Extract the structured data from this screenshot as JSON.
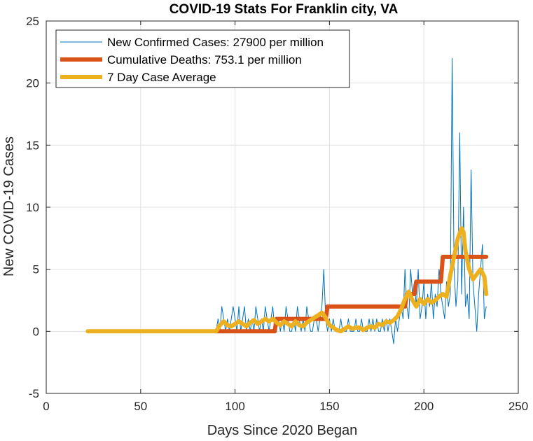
{
  "chart_data": {
    "type": "line",
    "title": "COVID-19 Stats For Franklin city, VA",
    "xlabel": "Days Since 2020 Began",
    "ylabel": "New COVID-19 Cases",
    "xlim": [
      0,
      250
    ],
    "ylim": [
      -5,
      25
    ],
    "xticks": [
      0,
      50,
      100,
      150,
      200,
      250
    ],
    "yticks": [
      -5,
      0,
      5,
      10,
      15,
      20,
      25
    ],
    "grid": true,
    "legend_position": "top-left",
    "series": [
      {
        "name": "New Confirmed Cases: 27900 per million",
        "color": "#0072bd",
        "x": [
          22,
          40,
          60,
          80,
          90,
          91,
          92,
          93,
          94,
          95,
          96,
          97,
          98,
          99,
          100,
          101,
          102,
          103,
          104,
          105,
          106,
          107,
          108,
          109,
          110,
          111,
          112,
          113,
          114,
          115,
          116,
          117,
          118,
          119,
          120,
          121,
          122,
          123,
          124,
          125,
          126,
          127,
          128,
          129,
          130,
          131,
          132,
          133,
          134,
          135,
          136,
          137,
          138,
          139,
          140,
          141,
          142,
          143,
          144,
          145,
          146,
          147,
          148,
          149,
          150,
          151,
          152,
          153,
          154,
          155,
          156,
          157,
          158,
          159,
          160,
          161,
          162,
          163,
          164,
          165,
          166,
          167,
          168,
          169,
          170,
          171,
          172,
          173,
          174,
          175,
          176,
          177,
          178,
          179,
          180,
          181,
          182,
          183,
          184,
          185,
          186,
          187,
          188,
          189,
          190,
          191,
          192,
          193,
          194,
          195,
          196,
          197,
          198,
          199,
          200,
          201,
          202,
          203,
          204,
          205,
          206,
          207,
          208,
          209,
          210,
          211,
          212,
          213,
          214,
          215,
          216,
          217,
          218,
          219,
          220,
          221,
          222,
          223,
          224,
          225,
          226,
          227,
          228,
          229,
          230,
          231,
          232,
          233
        ],
        "y": [
          0,
          0,
          0,
          0,
          0,
          1,
          0,
          2,
          1,
          0,
          1,
          0,
          1,
          2,
          1,
          0,
          2,
          0,
          1,
          2,
          0,
          1,
          0,
          1,
          0,
          2,
          1,
          0,
          1,
          0,
          2,
          1,
          0,
          1,
          2,
          0,
          1,
          1,
          0,
          1,
          0,
          2,
          1,
          0,
          0,
          1,
          0,
          2,
          1,
          0,
          1,
          0,
          2,
          1,
          0,
          0,
          1,
          1,
          0,
          1,
          2,
          5,
          1,
          0,
          1,
          0,
          1,
          0,
          0,
          0,
          1,
          0,
          0,
          0,
          1,
          0,
          0,
          0,
          1,
          0,
          0,
          1,
          0,
          0,
          0,
          1,
          0,
          1,
          0,
          1,
          0,
          0,
          1,
          0,
          1,
          0,
          1,
          0,
          -1,
          1,
          0,
          1,
          2,
          1,
          5,
          2,
          1,
          5,
          3,
          4,
          2,
          5,
          1,
          2,
          4,
          1,
          3,
          2,
          4,
          1,
          3,
          2,
          5,
          3,
          2,
          1,
          4,
          2,
          3,
          22,
          5,
          2,
          4,
          16,
          3,
          10,
          2,
          3,
          1,
          13,
          4,
          2,
          0,
          3,
          5,
          7,
          1,
          2
        ],
        "width": 1
      },
      {
        "name": "Cumulative Deaths: 753.1 per million",
        "color": "#d95319",
        "x": [
          90,
          121,
          122,
          148,
          149,
          190,
          191,
          195,
          196,
          209,
          210,
          233
        ],
        "y": [
          0,
          0,
          1,
          1,
          2,
          2,
          3,
          3,
          4,
          4,
          6,
          6
        ],
        "width": 6
      },
      {
        "name": "7 Day Case Average",
        "color": "#edb120",
        "x": [
          22,
          40,
          60,
          80,
          90,
          92,
          94,
          96,
          98,
          100,
          102,
          104,
          106,
          108,
          110,
          112,
          114,
          116,
          118,
          120,
          122,
          124,
          126,
          128,
          130,
          132,
          134,
          136,
          138,
          140,
          142,
          144,
          146,
          148,
          150,
          152,
          154,
          156,
          158,
          160,
          162,
          164,
          166,
          168,
          170,
          172,
          174,
          176,
          178,
          180,
          182,
          184,
          186,
          188,
          190,
          192,
          194,
          196,
          198,
          200,
          202,
          204,
          206,
          208,
          210,
          212,
          214,
          216,
          218,
          220,
          221,
          222,
          224,
          226,
          228,
          230,
          232,
          233
        ],
        "y": [
          0,
          0,
          0,
          0,
          0,
          0.5,
          0.8,
          0.5,
          0.4,
          0.6,
          0.8,
          0.6,
          0.4,
          0.7,
          0.9,
          0.6,
          0.8,
          1.0,
          0.8,
          1.0,
          0.7,
          0.5,
          0.8,
          0.6,
          0.4,
          0.8,
          0.5,
          0.4,
          0.7,
          0.9,
          1.1,
          1.3,
          1.5,
          1.1,
          0.5,
          0.3,
          0.1,
          0.0,
          0.2,
          0.4,
          0.2,
          0.3,
          0.3,
          0.1,
          0.3,
          0.4,
          0.3,
          0.6,
          0.5,
          0.8,
          0.7,
          0.9,
          1.2,
          1.8,
          2.6,
          3.2,
          2.5,
          2.0,
          2.6,
          2.2,
          2.6,
          2.3,
          2.5,
          2.8,
          3.0,
          2.8,
          4.5,
          6.0,
          7.5,
          8.3,
          8.0,
          6.5,
          5.0,
          4.2,
          4.6,
          5.0,
          4.4,
          3.0
        ],
        "width": 6
      }
    ]
  }
}
